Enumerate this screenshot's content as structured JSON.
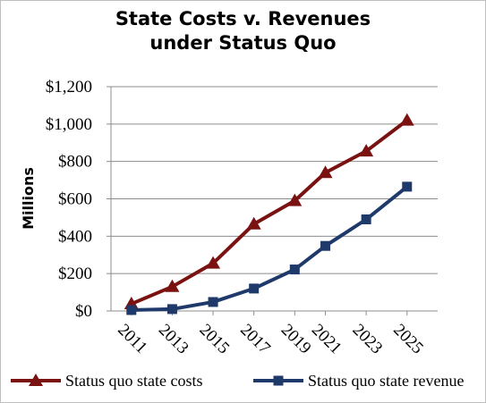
{
  "chart_data": {
    "type": "line",
    "title": [
      "State Costs v. Revenues",
      "under Status Quo"
    ],
    "ylabel": "Millions",
    "xlabel": "",
    "categories": [
      "2011",
      "2013",
      "2015",
      "2017",
      "2019",
      "2021",
      "2023",
      "2025"
    ],
    "ylim": [
      0,
      1200
    ],
    "yticks": [
      0,
      200,
      400,
      600,
      800,
      1000,
      1200
    ],
    "ytick_labels": [
      "$0",
      "$200",
      "$400",
      "$600",
      "$800",
      "$1,000",
      "$1,200"
    ],
    "grid": true,
    "legend_position": "bottom",
    "x_positions": [
      2011,
      2013,
      2015,
      2017,
      2019,
      2020.5,
      2022.5,
      2024.5
    ],
    "series": [
      {
        "name": "Status quo state costs",
        "values": [
          38,
          130,
          255,
          465,
          590,
          740,
          855,
          1020
        ],
        "color": "#7b1212",
        "marker": "triangle"
      },
      {
        "name": "Status quo state revenue",
        "values": [
          5,
          10,
          48,
          120,
          222,
          348,
          490,
          665
        ],
        "color": "#1f3a6a",
        "marker": "square"
      }
    ]
  }
}
